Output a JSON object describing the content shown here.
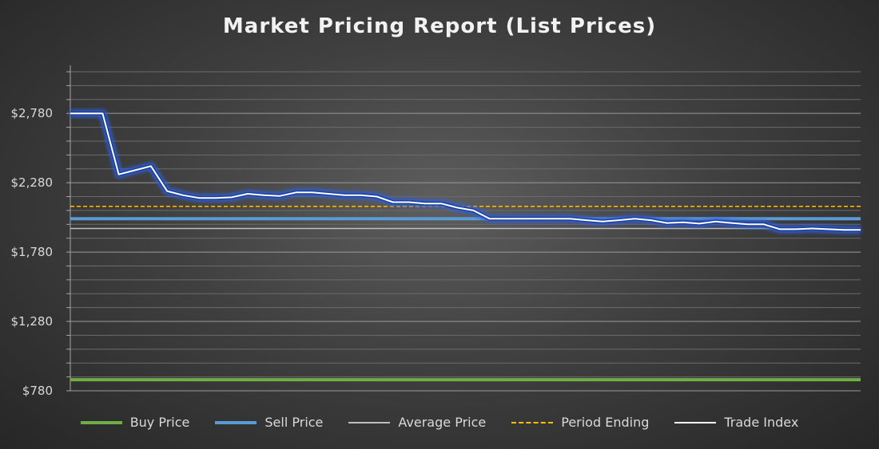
{
  "chart_data": {
    "type": "line",
    "title": "Market Pricing Report (List Prices)",
    "xlabel": "",
    "ylabel": "",
    "ylim": [
      780,
      3080
    ],
    "y_ticks": [
      780,
      1280,
      1780,
      2280,
      2780
    ],
    "y_tick_labels": [
      "$780",
      "$1,280",
      "$1,780",
      "$2,280",
      "$2,780"
    ],
    "grid": true,
    "legend_position": "bottom",
    "series": [
      {
        "name": "Buy Price",
        "style": "solid",
        "color": "#70ad47",
        "values": [
          860,
          860,
          860,
          860,
          860,
          860,
          860,
          860,
          860,
          860,
          860,
          860,
          860,
          860,
          860,
          860,
          860,
          860,
          860,
          860,
          860,
          860,
          860,
          860,
          860,
          860,
          860,
          860,
          860,
          860,
          860,
          860,
          860,
          860,
          860,
          860,
          860,
          860,
          860,
          860,
          860,
          860,
          860,
          860,
          860,
          860,
          860,
          860,
          860,
          860
        ]
      },
      {
        "name": "Sell Price",
        "style": "solid",
        "color": "#5b9bd5",
        "values": [
          2020,
          2020,
          2020,
          2020,
          2020,
          2020,
          2020,
          2020,
          2020,
          2020,
          2020,
          2020,
          2020,
          2020,
          2020,
          2020,
          2020,
          2020,
          2020,
          2020,
          2020,
          2020,
          2020,
          2020,
          2020,
          2020,
          2020,
          2020,
          2020,
          2020,
          2020,
          2020,
          2020,
          2020,
          2020,
          2020,
          2020,
          2020,
          2020,
          2020,
          2020,
          2020,
          2020,
          2020,
          2020,
          2020,
          2020,
          2020,
          2020,
          2020
        ]
      },
      {
        "name": "Average Price",
        "style": "solid",
        "color": "#bfbfbf",
        "values": [
          1950,
          1950,
          1950,
          1950,
          1950,
          1950,
          1950,
          1950,
          1950,
          1950,
          1950,
          1950,
          1950,
          1950,
          1950,
          1950,
          1950,
          1950,
          1950,
          1950,
          1950,
          1950,
          1950,
          1950,
          1950,
          1950,
          1950,
          1950,
          1950,
          1950,
          1950,
          1950,
          1950,
          1950,
          1950,
          1950,
          1950,
          1950,
          1950,
          1950,
          1950,
          1950,
          1950,
          1950,
          1950,
          1950,
          1950,
          1950,
          1950,
          1950
        ]
      },
      {
        "name": "Period Ending",
        "style": "dashed",
        "color": "#ffc000",
        "values": [
          2110,
          2110,
          2110,
          2110,
          2110,
          2110,
          2110,
          2110,
          2110,
          2110,
          2110,
          2110,
          2110,
          2110,
          2110,
          2110,
          2110,
          2110,
          2110,
          2110,
          2110,
          2110,
          2110,
          2110,
          2110,
          2110,
          2110,
          2110,
          2110,
          2110,
          2110,
          2110,
          2110,
          2110,
          2110,
          2110,
          2110,
          2110,
          2110,
          2110,
          2110,
          2110,
          2110,
          2110,
          2110,
          2110,
          2110,
          2110,
          2110,
          2110
        ]
      },
      {
        "name": "Trade Index",
        "style": "solid-glow",
        "color": "#ffffff",
        "values": [
          2780,
          2780,
          2780,
          2340,
          2370,
          2400,
          2220,
          2190,
          2170,
          2170,
          2175,
          2200,
          2190,
          2185,
          2210,
          2210,
          2200,
          2190,
          2190,
          2180,
          2140,
          2140,
          2130,
          2130,
          2100,
          2080,
          2020,
          2020,
          2020,
          2020,
          2020,
          2020,
          2010,
          2000,
          2010,
          2020,
          2010,
          1990,
          1995,
          1985,
          2000,
          1990,
          1980,
          1980,
          1945,
          1945,
          1950,
          1945,
          1940,
          1940
        ]
      }
    ]
  }
}
